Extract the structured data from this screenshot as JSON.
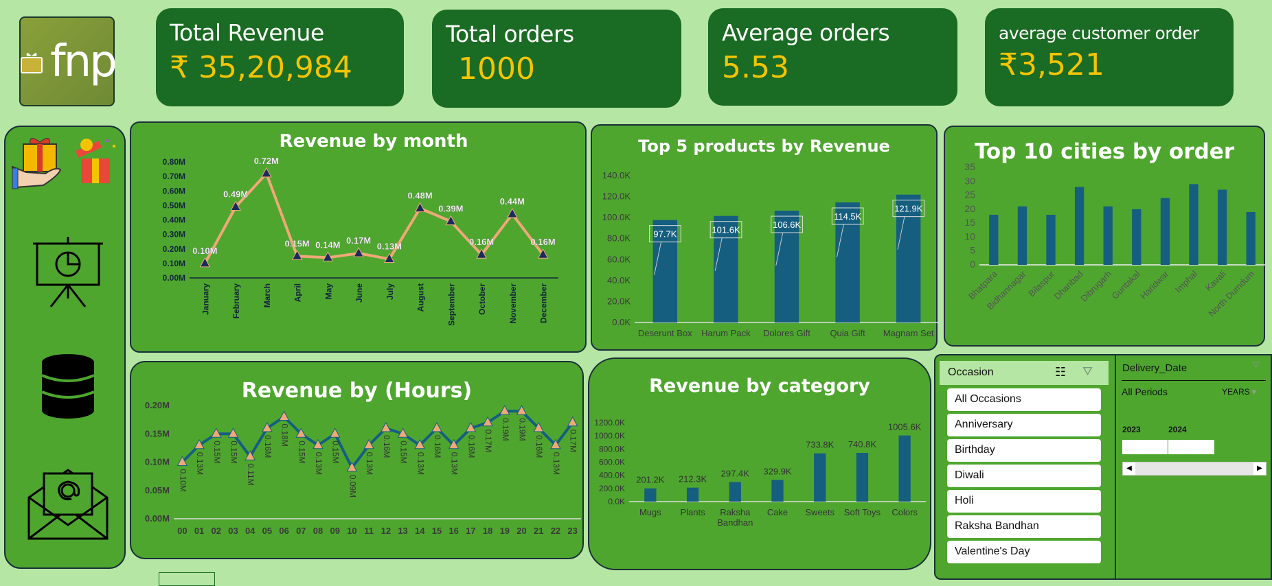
{
  "logo": {
    "text": "fnp"
  },
  "kpis": [
    {
      "label": "Total Revenue",
      "value": "₹ 35,20,984"
    },
    {
      "label": "Total orders",
      "value": "1000"
    },
    {
      "label": "Average orders",
      "value": "5.53"
    },
    {
      "label": "average customer order",
      "value": "₹3,521"
    }
  ],
  "sidebar": {
    "icons": [
      "gift-in-hand-icon",
      "open-gift-icon",
      "presentation-chart-icon",
      "database-icon",
      "email-icon"
    ]
  },
  "colors": {
    "background": "#b5e6a3",
    "panel": "#4ea62f",
    "kpi": "#1a6b23",
    "kpi_value": "#f5c400",
    "bar": "#155e80",
    "month_line": "#f0a878",
    "month_marker": "#1a2a5e",
    "hour_line": "#155e80",
    "hour_marker": "#f0a878"
  },
  "chart_data": [
    {
      "id": "month",
      "type": "line",
      "title": "Revenue by month",
      "categories": [
        "January",
        "February",
        "March",
        "April",
        "May",
        "June",
        "July",
        "August",
        "September",
        "October",
        "November",
        "December"
      ],
      "values": [
        0.1,
        0.49,
        0.72,
        0.15,
        0.14,
        0.17,
        0.13,
        0.48,
        0.39,
        0.16,
        0.44,
        0.16
      ],
      "labels": [
        "0.10M",
        "0.49M",
        "0.72M",
        "0.15M",
        "0.14M",
        "0.17M",
        "0.13M",
        "0.48M",
        "0.39M",
        "0.16M",
        "0.44M",
        "0.16M"
      ],
      "yticks": [
        "0.00M",
        "0.10M",
        "0.20M",
        "0.30M",
        "0.40M",
        "0.50M",
        "0.60M",
        "0.70M",
        "0.80M"
      ],
      "ylim": [
        0,
        0.8
      ],
      "unit": "M"
    },
    {
      "id": "products",
      "type": "bar",
      "title": "Top 5 products by Revenue",
      "categories": [
        "Deserunt Box",
        "Harum Pack",
        "Dolores Gift",
        "Quia Gift",
        "Magnam Set"
      ],
      "values": [
        97.7,
        101.6,
        106.6,
        114.5,
        121.9
      ],
      "labels": [
        "97.7K",
        "101.6K",
        "106.6K",
        "114.5K",
        "121.9K"
      ],
      "yticks": [
        "0.0K",
        "20.0K",
        "40.0K",
        "60.0K",
        "80.0K",
        "100.0K",
        "120.0K",
        "140.0K"
      ],
      "ylim": [
        0,
        140
      ],
      "unit": "K"
    },
    {
      "id": "cities",
      "type": "bar",
      "title": "Top 10 cities by order",
      "categories": [
        "Bhatpara",
        "Bidhannagar",
        "Bilaspur",
        "Dhanbad",
        "Dibrugarh",
        "Guntakal",
        "Haridwar",
        "Imphal",
        "Kavali",
        "North Dumdum"
      ],
      "values": [
        18,
        21,
        18,
        28,
        21,
        20,
        24,
        29,
        27,
        19
      ],
      "yticks": [
        "0",
        "5",
        "10",
        "15",
        "20",
        "25",
        "30",
        "35"
      ],
      "ylim": [
        0,
        35
      ]
    },
    {
      "id": "hours",
      "type": "line",
      "title": "Revenue by (Hours)",
      "categories": [
        "00",
        "01",
        "02",
        "03",
        "04",
        "05",
        "06",
        "07",
        "08",
        "09",
        "10",
        "11",
        "12",
        "13",
        "14",
        "15",
        "16",
        "17",
        "18",
        "19",
        "20",
        "21",
        "22",
        "23"
      ],
      "values": [
        0.1,
        0.13,
        0.15,
        0.15,
        0.11,
        0.16,
        0.18,
        0.15,
        0.13,
        0.15,
        0.09,
        0.13,
        0.16,
        0.15,
        0.13,
        0.16,
        0.13,
        0.16,
        0.17,
        0.19,
        0.19,
        0.16,
        0.13,
        0.17
      ],
      "labels": [
        "0.10M",
        "0.13M",
        "0.15M",
        "0.15M",
        "0.11M",
        "0.16M",
        "0.18M",
        "0.15M",
        "0.13M",
        "0.15M",
        "0.09M",
        "0.13M",
        "0.16M",
        "0.15M",
        "0.13M",
        "0.16M",
        "0.13M",
        "0.16M",
        "0.17M",
        "0.19M",
        "0.19M",
        "0.16M",
        "0.13M",
        "0.17M"
      ],
      "yticks": [
        "0.00M",
        "0.05M",
        "0.10M",
        "0.15M",
        "0.20M"
      ],
      "ylim": [
        0,
        0.2
      ],
      "unit": "M"
    },
    {
      "id": "category",
      "type": "bar",
      "title": "Revenue by category",
      "categories": [
        "Mugs",
        "Plants",
        "Raksha Bandhan",
        "Cake",
        "Sweets",
        "Soft Toys",
        "Colors"
      ],
      "values": [
        201.2,
        212.3,
        297.4,
        329.9,
        733.8,
        740.8,
        1005.6
      ],
      "labels": [
        "201.2K",
        "212.3K",
        "297.4K",
        "329.9K",
        "733.8K",
        "740.8K",
        "1005.6K"
      ],
      "yticks": [
        "0.0K",
        "200.0K",
        "400.0K",
        "600.0K",
        "800.0K",
        "1000.0K",
        "1200.0K"
      ],
      "ylim": [
        0,
        1200
      ],
      "unit": "K"
    }
  ],
  "occasion_slicer": {
    "title": "Occasion",
    "items": [
      "All Occasions",
      "Anniversary",
      "Birthday",
      "Diwali",
      "Holi",
      "Raksha Bandhan",
      "Valentine's Day"
    ]
  },
  "date_slicer": {
    "title": "Delivery_Date",
    "period": "All Periods",
    "level": "YEARS",
    "years": [
      "2023",
      "2024"
    ]
  }
}
